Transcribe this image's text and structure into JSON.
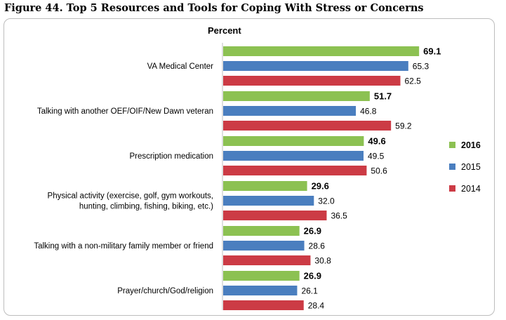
{
  "figure_title": "Figure 44. Top 5 Resources and Tools for Coping With Stress or Concerns",
  "chart_data": {
    "type": "bar",
    "orientation": "horizontal",
    "unit_label": "Percent",
    "xlim": [
      0,
      100
    ],
    "grid": false,
    "legend_position": "right",
    "categories": [
      [
        "VA Medical Center"
      ],
      [
        "Talking with another OEF/OIF/New Dawn veteran"
      ],
      [
        "Prescription medication"
      ],
      [
        "Physical activity (exercise, golf, gym workouts,",
        "hunting, climbing, fishing, biking, etc.)"
      ],
      [
        "Talking with a non-military family member or friend"
      ],
      [
        "Prayer/church/God/religion"
      ]
    ],
    "series": [
      {
        "name": "2016",
        "color": "#8cc152",
        "bold": true,
        "values": [
          69.1,
          51.7,
          49.6,
          29.6,
          26.9,
          26.9
        ]
      },
      {
        "name": "2015",
        "color": "#4a7ebf",
        "bold": false,
        "values": [
          65.3,
          46.8,
          49.5,
          32.0,
          28.6,
          26.1
        ]
      },
      {
        "name": "2014",
        "color": "#cc3b45",
        "bold": false,
        "values": [
          62.5,
          59.2,
          50.6,
          36.5,
          30.8,
          28.4
        ]
      }
    ]
  }
}
